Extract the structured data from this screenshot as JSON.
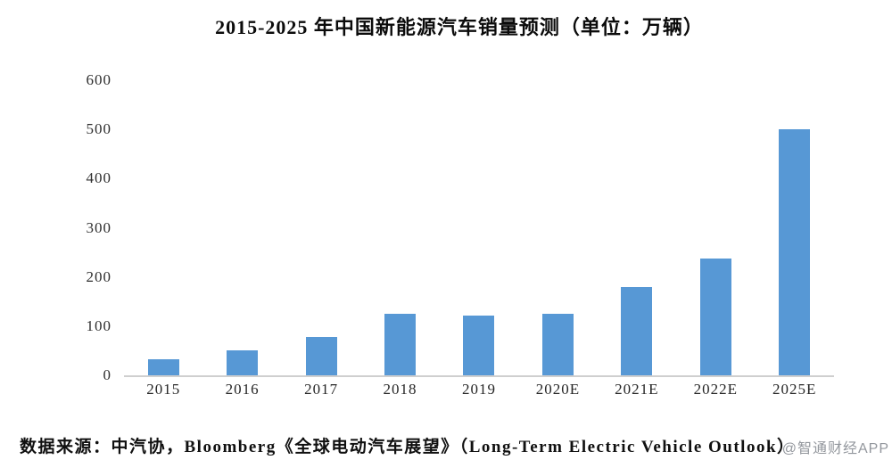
{
  "title": "2015-2025 年中国新能源汽车销量预测（单位：万辆）",
  "source_note": "数据来源：中汽协，Bloomberg《全球电动汽车展望》（Long-Term Electric Vehicle Outlook）",
  "watermark": "@智通财经APP",
  "colors": {
    "bar": "#5798d5",
    "axis_line": "#cfcfcf",
    "title_text": "#0b0b0b",
    "tick_text": "#2e2e2e",
    "watermark_text": "#80858c"
  },
  "chart_data": {
    "type": "bar",
    "title": "2015-2025 年中国新能源汽车销量预测（单位：万辆）",
    "categories": [
      "2015",
      "2016",
      "2017",
      "2018",
      "2019",
      "2020E",
      "2021E",
      "2022E",
      "2025E"
    ],
    "values": [
      33,
      51,
      78,
      126,
      121,
      125,
      180,
      237,
      500
    ],
    "unit": "万辆",
    "xlabel": "",
    "ylabel": "",
    "ylim": [
      0,
      600
    ],
    "yticks": [
      0,
      100,
      200,
      300,
      400,
      500,
      600
    ],
    "grid": false,
    "legend": false,
    "bar_color": "#5798d5"
  }
}
